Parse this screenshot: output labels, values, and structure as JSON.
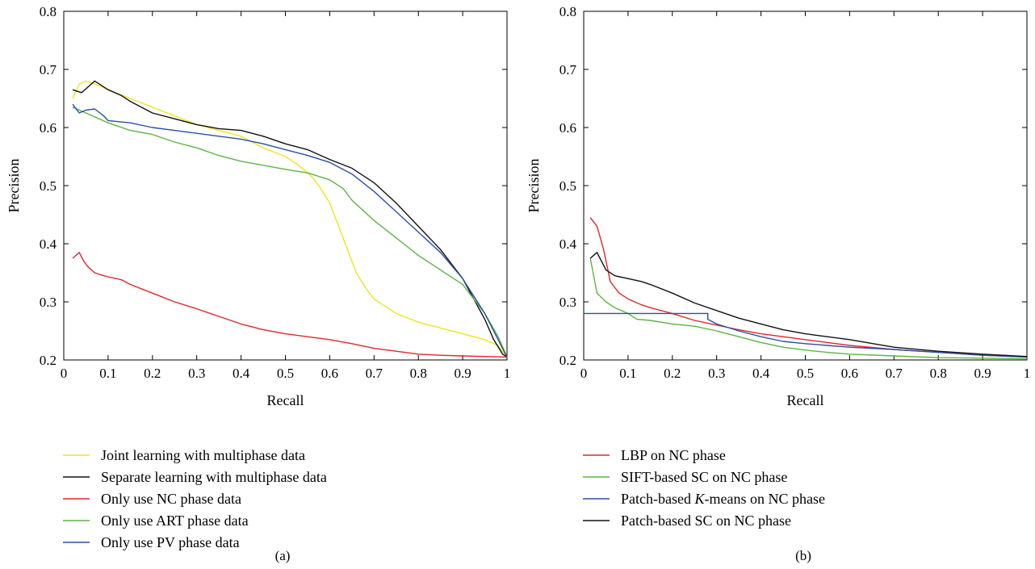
{
  "chart_data": [
    {
      "type": "line",
      "panel_label": "(a)",
      "xlabel": "Recall",
      "ylabel": "Precision",
      "xlim": [
        0,
        1
      ],
      "ylim": [
        0.2,
        0.8
      ],
      "x_ticks": [
        "0",
        "0.1",
        "0.2",
        "0.3",
        "0.4",
        "0.5",
        "0.6",
        "0.7",
        "0.8",
        "0.9",
        "1"
      ],
      "y_ticks": [
        "0.2",
        "0.3",
        "0.4",
        "0.5",
        "0.6",
        "0.7",
        "0.8"
      ],
      "legend_position": "below-left",
      "series": [
        {
          "name": "Joint learning with multiphase data",
          "color": "#f2e31e",
          "x": [
            0.02,
            0.035,
            0.05,
            0.07,
            0.1,
            0.15,
            0.2,
            0.25,
            0.3,
            0.35,
            0.4,
            0.45,
            0.5,
            0.53,
            0.56,
            0.58,
            0.6,
            0.62,
            0.64,
            0.66,
            0.68,
            0.7,
            0.75,
            0.8,
            0.85,
            0.9,
            0.95,
            0.98,
            1.0
          ],
          "y": [
            0.65,
            0.675,
            0.68,
            0.675,
            0.665,
            0.65,
            0.635,
            0.62,
            0.605,
            0.595,
            0.585,
            0.565,
            0.55,
            0.535,
            0.515,
            0.495,
            0.47,
            0.43,
            0.39,
            0.35,
            0.325,
            0.305,
            0.28,
            0.265,
            0.255,
            0.245,
            0.235,
            0.225,
            0.205
          ]
        },
        {
          "name": "Separate learning with multiphase data",
          "color": "#111111",
          "x": [
            0.02,
            0.04,
            0.055,
            0.07,
            0.1,
            0.13,
            0.15,
            0.2,
            0.25,
            0.3,
            0.35,
            0.4,
            0.45,
            0.5,
            0.55,
            0.6,
            0.65,
            0.7,
            0.75,
            0.8,
            0.85,
            0.9,
            0.95,
            0.97,
            0.99,
            1.0
          ],
          "y": [
            0.665,
            0.66,
            0.67,
            0.68,
            0.665,
            0.655,
            0.645,
            0.625,
            0.615,
            0.605,
            0.598,
            0.595,
            0.585,
            0.572,
            0.562,
            0.545,
            0.53,
            0.505,
            0.47,
            0.43,
            0.39,
            0.34,
            0.27,
            0.235,
            0.21,
            0.205
          ]
        },
        {
          "name": "Only use NC phase data",
          "color": "#e3262b",
          "x": [
            0.02,
            0.035,
            0.045,
            0.055,
            0.07,
            0.09,
            0.1,
            0.13,
            0.15,
            0.2,
            0.25,
            0.3,
            0.35,
            0.4,
            0.45,
            0.5,
            0.55,
            0.6,
            0.65,
            0.7,
            0.75,
            0.8,
            0.85,
            0.9,
            0.95,
            1.0
          ],
          "y": [
            0.375,
            0.385,
            0.37,
            0.36,
            0.35,
            0.345,
            0.343,
            0.338,
            0.33,
            0.315,
            0.3,
            0.288,
            0.275,
            0.262,
            0.252,
            0.245,
            0.24,
            0.235,
            0.228,
            0.22,
            0.215,
            0.21,
            0.208,
            0.207,
            0.206,
            0.205
          ]
        },
        {
          "name": "Only use ART phase data",
          "color": "#5ab540",
          "x": [
            0.02,
            0.05,
            0.1,
            0.15,
            0.2,
            0.25,
            0.3,
            0.35,
            0.4,
            0.45,
            0.5,
            0.55,
            0.6,
            0.63,
            0.65,
            0.7,
            0.75,
            0.8,
            0.85,
            0.9,
            0.95,
            0.98,
            1.0
          ],
          "y": [
            0.635,
            0.625,
            0.608,
            0.595,
            0.588,
            0.575,
            0.565,
            0.552,
            0.542,
            0.535,
            0.528,
            0.522,
            0.51,
            0.495,
            0.475,
            0.44,
            0.41,
            0.38,
            0.355,
            0.33,
            0.28,
            0.24,
            0.205
          ]
        },
        {
          "name": "Only use PV phase data",
          "color": "#2a4fa8",
          "x": [
            0.02,
            0.035,
            0.05,
            0.07,
            0.09,
            0.1,
            0.15,
            0.2,
            0.25,
            0.3,
            0.35,
            0.4,
            0.45,
            0.5,
            0.55,
            0.6,
            0.65,
            0.7,
            0.75,
            0.8,
            0.85,
            0.9,
            0.95,
            0.98,
            1.0
          ],
          "y": [
            0.64,
            0.625,
            0.63,
            0.632,
            0.62,
            0.612,
            0.608,
            0.6,
            0.595,
            0.59,
            0.585,
            0.58,
            0.572,
            0.562,
            0.552,
            0.54,
            0.52,
            0.49,
            0.455,
            0.42,
            0.385,
            0.34,
            0.28,
            0.235,
            0.205
          ]
        }
      ]
    },
    {
      "type": "line",
      "panel_label": "(b)",
      "xlabel": "Recall",
      "ylabel": "Precision",
      "xlim": [
        0,
        1
      ],
      "ylim": [
        0.2,
        0.8
      ],
      "x_ticks": [
        "0",
        "0.1",
        "0.2",
        "0.3",
        "0.4",
        "0.5",
        "0.6",
        "0.7",
        "0.8",
        "0.9",
        "1"
      ],
      "y_ticks": [
        "0.2",
        "0.3",
        "0.4",
        "0.5",
        "0.6",
        "0.7",
        "0.8"
      ],
      "legend_position": "below-left",
      "series": [
        {
          "name": "LBP on NC phase",
          "color": "#e3262b",
          "x": [
            0.015,
            0.03,
            0.045,
            0.06,
            0.08,
            0.1,
            0.13,
            0.15,
            0.2,
            0.25,
            0.3,
            0.35,
            0.4,
            0.45,
            0.5,
            0.55,
            0.6,
            0.7,
            0.8,
            0.9,
            1.0
          ],
          "y": [
            0.445,
            0.43,
            0.39,
            0.335,
            0.315,
            0.305,
            0.295,
            0.29,
            0.28,
            0.268,
            0.26,
            0.252,
            0.245,
            0.24,
            0.235,
            0.23,
            0.225,
            0.218,
            0.213,
            0.208,
            0.205
          ]
        },
        {
          "name": "SIFT-based SC on NC phase",
          "color": "#5ab540",
          "x": [
            0.015,
            0.03,
            0.05,
            0.07,
            0.1,
            0.12,
            0.15,
            0.2,
            0.25,
            0.3,
            0.35,
            0.4,
            0.45,
            0.5,
            0.55,
            0.6,
            0.7,
            0.8,
            0.9,
            1.0
          ],
          "y": [
            0.375,
            0.315,
            0.3,
            0.29,
            0.28,
            0.27,
            0.268,
            0.262,
            0.258,
            0.25,
            0.24,
            0.23,
            0.222,
            0.217,
            0.213,
            0.21,
            0.207,
            0.204,
            0.203,
            0.202
          ]
        },
        {
          "name": "Patch-based K-means on NC phase",
          "color": "#2a4fa8",
          "x": [
            0.0,
            0.1,
            0.2,
            0.28,
            0.28,
            0.3,
            0.35,
            0.4,
            0.45,
            0.5,
            0.55,
            0.6,
            0.7,
            0.8,
            0.9,
            1.0
          ],
          "y": [
            0.28,
            0.28,
            0.28,
            0.28,
            0.27,
            0.262,
            0.25,
            0.24,
            0.232,
            0.228,
            0.225,
            0.222,
            0.218,
            0.213,
            0.208,
            0.205
          ]
        },
        {
          "name": "Patch-based SC on NC phase",
          "color": "#111111",
          "x": [
            0.015,
            0.03,
            0.04,
            0.05,
            0.07,
            0.1,
            0.13,
            0.15,
            0.2,
            0.25,
            0.3,
            0.35,
            0.4,
            0.45,
            0.5,
            0.55,
            0.6,
            0.7,
            0.8,
            0.9,
            1.0
          ],
          "y": [
            0.375,
            0.385,
            0.37,
            0.355,
            0.345,
            0.34,
            0.335,
            0.33,
            0.315,
            0.298,
            0.285,
            0.272,
            0.262,
            0.252,
            0.245,
            0.24,
            0.235,
            0.222,
            0.215,
            0.21,
            0.206
          ]
        }
      ]
    }
  ]
}
